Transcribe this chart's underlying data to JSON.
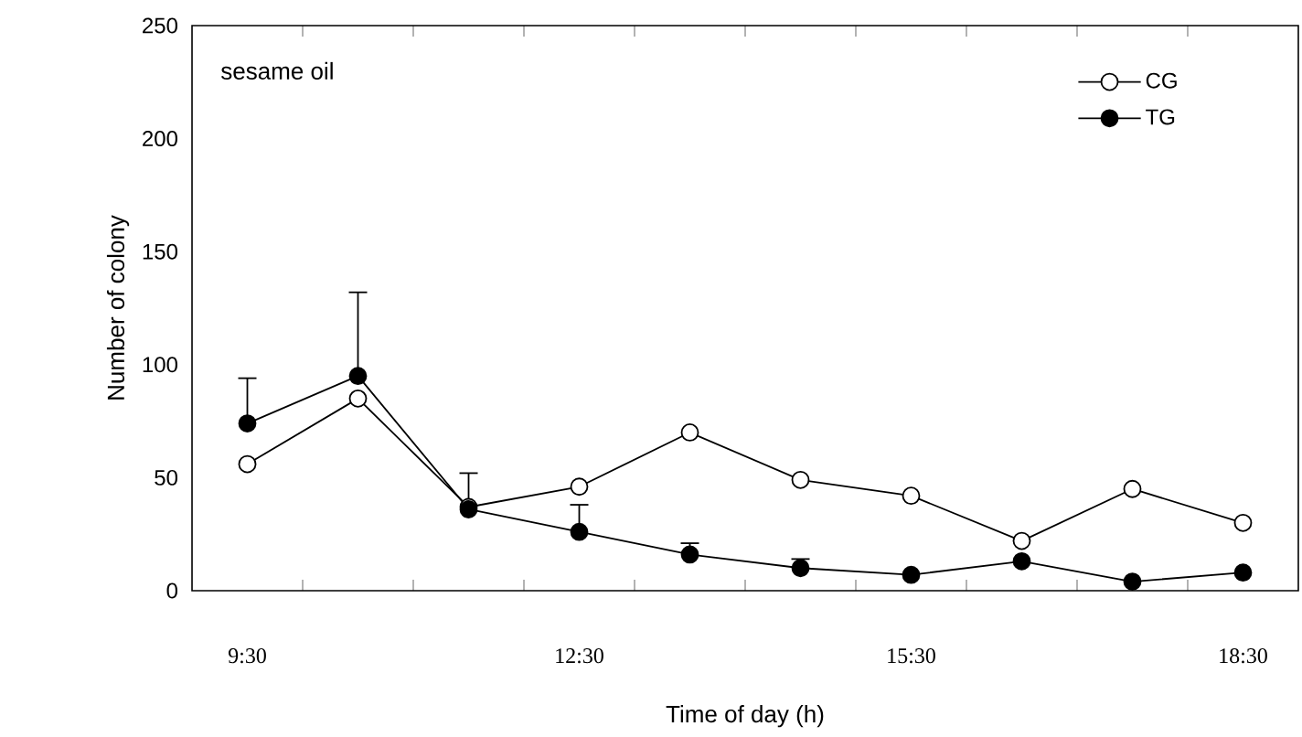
{
  "chart_data": {
    "type": "line",
    "xlabel": "Time of day (h)",
    "ylabel": "Number of colony",
    "annotations": [
      "sesame oil"
    ],
    "categories": [
      "9:30",
      null,
      null,
      "12:30",
      null,
      null,
      "15:30",
      null,
      null,
      "18:30"
    ],
    "series": [
      {
        "name": "CG",
        "color": "#000000",
        "values": [
          56,
          85,
          37,
          46,
          70,
          49,
          42,
          22,
          45,
          30
        ]
      },
      {
        "name": "TG",
        "color": "#000000",
        "values": [
          74,
          95,
          36,
          26,
          16,
          10,
          7,
          13,
          4,
          8
        ],
        "errors": [
          [
            74,
            94
          ],
          [
            95,
            132
          ],
          [
            36,
            52
          ],
          [
            26,
            38
          ],
          [
            16,
            21
          ],
          [
            10,
            14
          ],
          null,
          null,
          null,
          null
        ]
      }
    ],
    "ylim": [
      0,
      250
    ],
    "yticks": [
      0,
      50,
      100,
      150,
      200,
      250
    ],
    "grid": false,
    "legend": "top right",
    "marker": "circle",
    "line_style": "solid"
  }
}
